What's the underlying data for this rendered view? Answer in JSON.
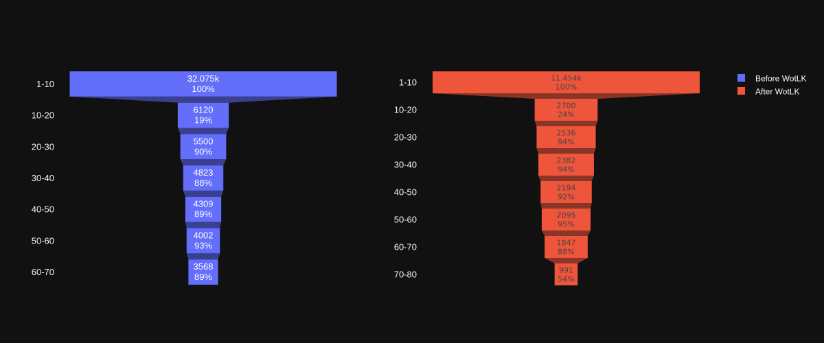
{
  "chart_data": [
    {
      "type": "funnel",
      "name": "Before WotLK",
      "color": "#636efa",
      "connector_color": "#3a3f8f",
      "categories": [
        "1-10",
        "10-20",
        "20-30",
        "30-40",
        "40-50",
        "50-60",
        "60-70"
      ],
      "values": [
        32075,
        6120,
        5500,
        4823,
        4309,
        4002,
        3568
      ],
      "value_labels": [
        "32.075k",
        "6120",
        "5500",
        "4823",
        "4309",
        "4002",
        "3568"
      ],
      "percent_labels": [
        "100%",
        "19%",
        "90%",
        "88%",
        "89%",
        "93%",
        "89%"
      ]
    },
    {
      "type": "funnel",
      "name": "After WotLK",
      "color": "#ef553b",
      "connector_color": "#8a3526",
      "categories": [
        "1-10",
        "10-20",
        "20-30",
        "30-40",
        "40-50",
        "50-60",
        "60-70",
        "70-80"
      ],
      "values": [
        11454,
        2700,
        2536,
        2382,
        2194,
        2095,
        1847,
        991
      ],
      "value_labels": [
        "11.454k",
        "2700",
        "2536",
        "2382",
        "2194",
        "2095",
        "1847",
        "991"
      ],
      "percent_labels": [
        "100%",
        "24%",
        "94%",
        "94%",
        "92%",
        "95%",
        "88%",
        "54%"
      ]
    }
  ],
  "legend": {
    "items": [
      {
        "label": "Before WotLK",
        "color": "#636efa"
      },
      {
        "label": "After WotLK",
        "color": "#ef553b"
      }
    ],
    "position": "top-right"
  }
}
